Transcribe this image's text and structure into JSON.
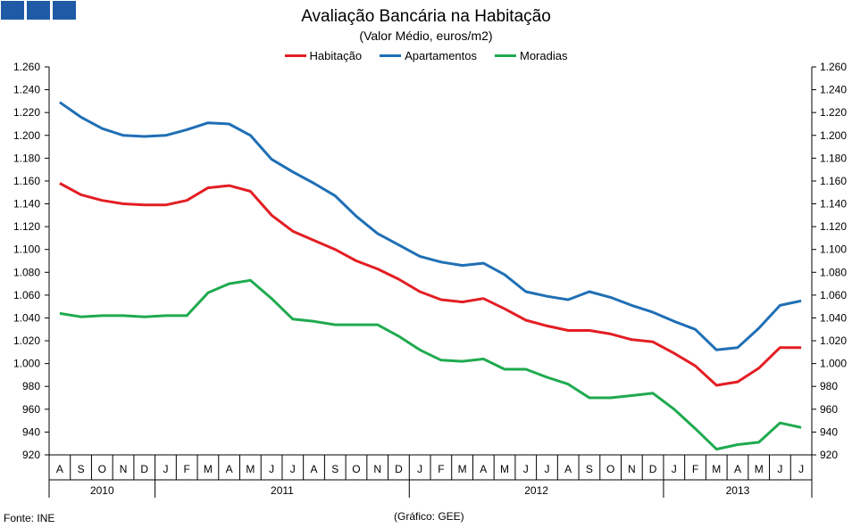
{
  "chart_data": {
    "type": "line",
    "title": "Avaliação Bancária na Habitação",
    "subtitle": "(Valor Médio, euros/m2)",
    "ylim": [
      920,
      1260
    ],
    "yticks": [
      "920",
      "940",
      "960",
      "980",
      "1.000",
      "1.020",
      "1.040",
      "1.060",
      "1.080",
      "1.100",
      "1.120",
      "1.140",
      "1.160",
      "1.180",
      "1.200",
      "1.220",
      "1.240",
      "1.260"
    ],
    "categories": [
      "A",
      "S",
      "O",
      "N",
      "D",
      "J",
      "F",
      "M",
      "A",
      "M",
      "J",
      "J",
      "A",
      "S",
      "O",
      "N",
      "D",
      "J",
      "F",
      "M",
      "A",
      "M",
      "J",
      "J",
      "A",
      "S",
      "O",
      "N",
      "D",
      "J",
      "F",
      "M",
      "A",
      "M",
      "J",
      "J"
    ],
    "years": [
      {
        "label": "2010",
        "start": 0,
        "end": 5
      },
      {
        "label": "2011",
        "start": 5,
        "end": 17
      },
      {
        "label": "2012",
        "start": 17,
        "end": 29
      },
      {
        "label": "2013",
        "start": 29,
        "end": 36
      }
    ],
    "series": [
      {
        "name": "Habitação",
        "color": "#e31e24",
        "values": [
          1158,
          1148,
          1143,
          1140,
          1139,
          1139,
          1143,
          1154,
          1156,
          1151,
          1130,
          1116,
          1108,
          1100,
          1090,
          1083,
          1074,
          1063,
          1056,
          1054,
          1057,
          1048,
          1038,
          1033,
          1029,
          1029,
          1026,
          1021,
          1019,
          1009,
          998,
          981,
          984,
          996,
          1014,
          1014
        ]
      },
      {
        "name": "Apartamentos",
        "color": "#1f6fb5",
        "values": [
          1229,
          1216,
          1206,
          1200,
          1199,
          1200,
          1205,
          1211,
          1210,
          1200,
          1179,
          1168,
          1158,
          1147,
          1129,
          1114,
          1104,
          1094,
          1089,
          1086,
          1088,
          1078,
          1063,
          1059,
          1056,
          1063,
          1058,
          1051,
          1045,
          1037,
          1030,
          1012,
          1014,
          1031,
          1051,
          1055
        ]
      },
      {
        "name": "Moradias",
        "color": "#1faa4f",
        "values": [
          1044,
          1041,
          1042,
          1042,
          1041,
          1042,
          1042,
          1062,
          1070,
          1073,
          1057,
          1039,
          1037,
          1034,
          1034,
          1034,
          1024,
          1012,
          1003,
          1002,
          1004,
          995,
          995,
          988,
          982,
          970,
          970,
          972,
          974,
          960,
          943,
          925,
          929,
          931,
          948,
          944
        ]
      }
    ]
  },
  "footer": {
    "source": "Fonte: INE",
    "credit": "(Gráfico: GEE)"
  }
}
